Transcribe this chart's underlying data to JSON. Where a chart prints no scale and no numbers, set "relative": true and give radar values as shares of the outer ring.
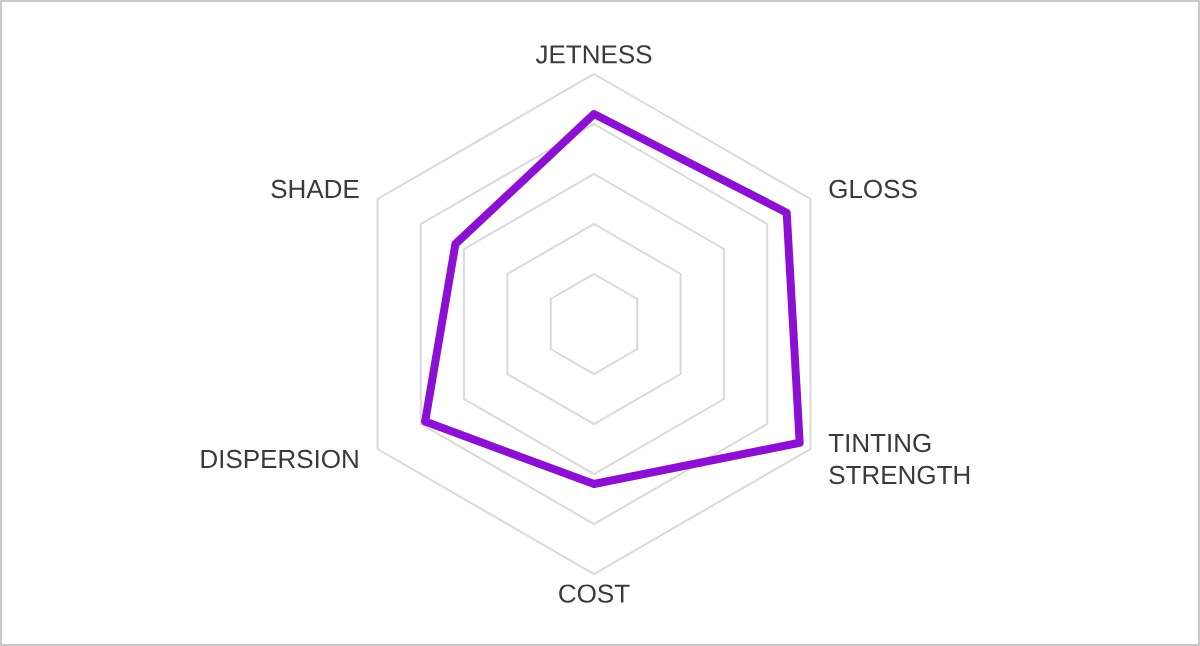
{
  "chart_data": {
    "type": "radar",
    "relative": true,
    "grid": true,
    "categories": [
      "JETNESS",
      "GLOSS",
      "TINTING STRENGTH",
      "COST",
      "DISPERSION",
      "SHADE"
    ],
    "series": [
      {
        "color": "#8b10d4",
        "values": [
          0.84,
          0.89,
          0.95,
          0.64,
          0.78,
          0.64
        ]
      }
    ]
  }
}
